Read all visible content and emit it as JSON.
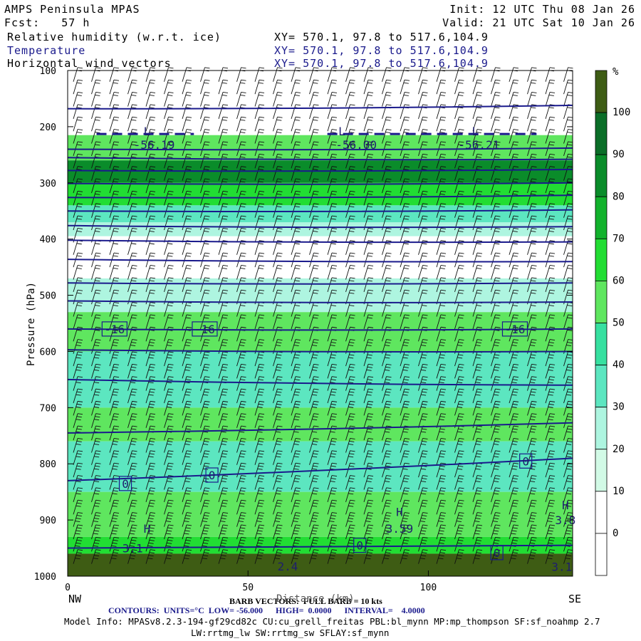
{
  "header": {
    "title": "AMPS Peninsula MPAS",
    "fcst": "Fcst:   57 h",
    "init": "Init: 12 UTC Thu 08 Jan 26",
    "valid": "Valid: 21 UTC Sat 10 Jan 26",
    "fields": [
      {
        "name": "Relative humidity (w.r.t. ice)",
        "xy": "XY= 570.1, 97.8 to 517.6,104.9"
      },
      {
        "name": "Temperature",
        "xy": "XY= 570.1, 97.8 to 517.6,104.9"
      },
      {
        "name": "Horizontal wind vectors",
        "xy": "XY= 570.1, 97.8 to 517.6,104.9"
      }
    ]
  },
  "footer": {
    "barb": "BARB VECTORS:  FULL BARB = 10 kts",
    "xlabel": "Distance (km)",
    "contours": "CONTOURS:  UNITS=°C  LOW= -56.000      HIGH=  0.0000      INTERVAL=    4.0000",
    "model_info_1": "Model Info: MPASv8.2.3-194-gf29cd82c CU:cu_grell_freitas PBL:bl_mynn MP:mp_thompson SF:sf_noahmp 2.7",
    "model_info_2": "LW:rrtmg_lw SW:rrtmg_sw SFLAY:sf_mynn",
    "left_end": "NW",
    "right_end": "SE"
  },
  "colors": {
    "rh_levels": [
      "#ffffff",
      "#ffffff",
      "#ffffff",
      "#ffffff",
      "#d2fae6",
      "#aef5e0",
      "#5ce6c0",
      "#37e0a0",
      "#5fe65f",
      "#22dd33",
      "#12b22c",
      "#0a8c2a",
      "#0b6e28",
      "#3e5c14"
    ],
    "contour": "#1a1a8c"
  },
  "chart_data": {
    "type": "heatmap",
    "ylabel": "Pressure (hPa)",
    "xlabel": "Distance (km)",
    "xlim": [
      0,
      140
    ],
    "ylim": [
      1000,
      100
    ],
    "xticks": [
      0,
      50,
      100
    ],
    "yticks": [
      100,
      200,
      300,
      400,
      500,
      600,
      700,
      800,
      900,
      1000
    ],
    "colorbar": {
      "unit": "%",
      "ticks": [
        0,
        10,
        20,
        30,
        40,
        50,
        60,
        70,
        80,
        90,
        100
      ]
    },
    "rh_bands": [
      {
        "p_top": 215,
        "p_bot": 260,
        "rh": 65
      },
      {
        "p_top": 260,
        "p_bot": 300,
        "rh": 82
      },
      {
        "p_top": 300,
        "p_bot": 340,
        "rh": 75
      },
      {
        "p_top": 340,
        "p_bot": 370,
        "rh": 55
      },
      {
        "p_top": 370,
        "p_bot": 395,
        "rh": 45
      },
      {
        "p_top": 395,
        "p_bot": 470,
        "rh": 25
      },
      {
        "p_top": 470,
        "p_bot": 530,
        "rh": 45
      },
      {
        "p_top": 530,
        "p_bot": 600,
        "rh": 62
      },
      {
        "p_top": 600,
        "p_bot": 700,
        "rh": 52
      },
      {
        "p_top": 700,
        "p_bot": 760,
        "rh": 62
      },
      {
        "p_top": 760,
        "p_bot": 850,
        "rh": 50
      },
      {
        "p_top": 850,
        "p_bot": 930,
        "rh": 60
      },
      {
        "p_top": 930,
        "p_bot": 960,
        "rh": 78
      },
      {
        "p_top": 960,
        "p_bot": 1000,
        "rh": 96
      }
    ],
    "temperature_contours": [
      {
        "p_left": 168,
        "p_right": 162
      },
      {
        "p_left": 240,
        "p_right": 238
      },
      {
        "p_left": 255,
        "p_right": 258
      },
      {
        "p_left": 278,
        "p_right": 276
      },
      {
        "p_left": 301,
        "p_right": 300
      },
      {
        "p_left": 326,
        "p_right": 322
      },
      {
        "p_left": 350,
        "p_right": 348
      },
      {
        "p_left": 376,
        "p_right": 378
      },
      {
        "p_left": 402,
        "p_right": 405
      },
      {
        "p_left": 436,
        "p_right": 440
      },
      {
        "p_left": 478,
        "p_right": 478
      },
      {
        "p_left": 510,
        "p_right": 512
      },
      {
        "p_left": 560,
        "p_right": 560
      },
      {
        "p_left": 597,
        "p_right": 600
      },
      {
        "p_left": 650,
        "p_right": 660
      },
      {
        "p_left": 745,
        "p_right": 727
      },
      {
        "p_left": 830,
        "p_right": 790
      },
      {
        "p_left": 950,
        "p_right": 945
      }
    ],
    "contour_labels": [
      {
        "text": "-56.19",
        "x": 24,
        "p": 232
      },
      {
        "text": "-56.00",
        "x": 80,
        "p": 232
      },
      {
        "text": "-56.21",
        "x": 114,
        "p": 232
      },
      {
        "text": "-16",
        "x": 13,
        "p": 560
      },
      {
        "text": "-16",
        "x": 38,
        "p": 560
      },
      {
        "text": "-16",
        "x": 124,
        "p": 560
      },
      {
        "text": "0",
        "x": 16,
        "p": 835
      },
      {
        "text": "0",
        "x": 40,
        "p": 820
      },
      {
        "text": "0",
        "x": 127,
        "p": 795
      },
      {
        "text": "0",
        "x": 81,
        "p": 945
      },
      {
        "text": "0",
        "x": 119,
        "p": 958
      }
    ],
    "extrema": [
      {
        "text": "L",
        "x": 22,
        "p": 208
      },
      {
        "text": "L",
        "x": 76,
        "p": 208
      },
      {
        "text": "L",
        "x": 113,
        "p": 208
      },
      {
        "text": "H",
        "x": 22,
        "p": 915
      },
      {
        "text": "H",
        "x": 92,
        "p": 885
      },
      {
        "text": "3.59",
        "x": 92,
        "p": 915
      },
      {
        "text": "H",
        "x": 138,
        "p": 873
      },
      {
        "text": "3.8",
        "x": 138,
        "p": 900
      },
      {
        "text": "3.1",
        "x": 18,
        "p": 950
      },
      {
        "text": "2.4",
        "x": 61,
        "p": 982
      },
      {
        "text": "3.1",
        "x": 137,
        "p": 983
      }
    ]
  }
}
